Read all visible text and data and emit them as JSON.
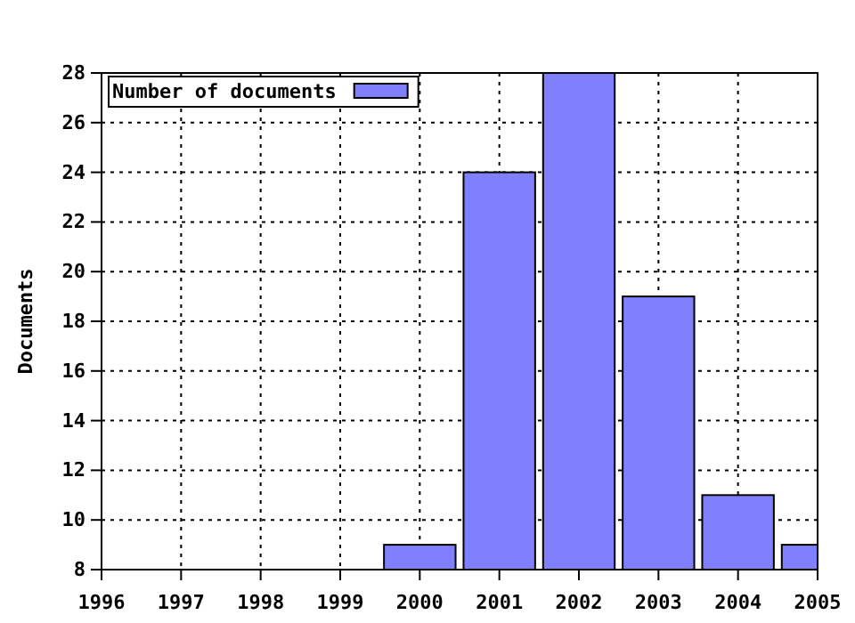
{
  "chart_data": {
    "type": "bar",
    "ylabel": "Documents",
    "x": [
      2000,
      2001,
      2002,
      2003,
      2004,
      2005
    ],
    "series": [
      {
        "name": "Number of documents",
        "color": "#8080ff",
        "values": [
          9,
          24,
          28,
          19,
          11,
          9
        ]
      }
    ],
    "xlim": [
      1996,
      2005
    ],
    "xticks": [
      1996,
      1997,
      1998,
      1999,
      2000,
      2001,
      2002,
      2003,
      2004,
      2005
    ],
    "ylim": [
      8,
      28
    ],
    "yticks": [
      8,
      10,
      12,
      14,
      16,
      18,
      20,
      22,
      24,
      26,
      28
    ],
    "grid": true,
    "legend": "top left"
  }
}
